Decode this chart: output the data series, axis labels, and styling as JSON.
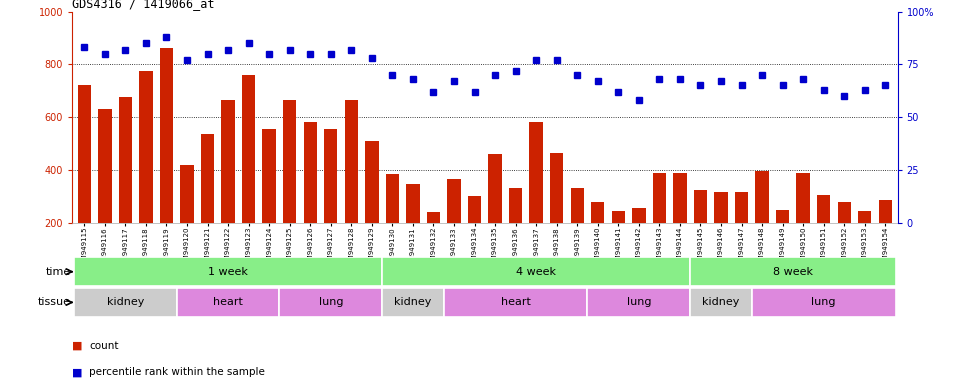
{
  "title": "GDS4316 / 1419066_at",
  "samples": [
    "GSM949115",
    "GSM949116",
    "GSM949117",
    "GSM949118",
    "GSM949119",
    "GSM949120",
    "GSM949121",
    "GSM949122",
    "GSM949123",
    "GSM949124",
    "GSM949125",
    "GSM949126",
    "GSM949127",
    "GSM949128",
    "GSM949129",
    "GSM949130",
    "GSM949131",
    "GSM949132",
    "GSM949133",
    "GSM949134",
    "GSM949135",
    "GSM949136",
    "GSM949137",
    "GSM949138",
    "GSM949139",
    "GSM949140",
    "GSM949141",
    "GSM949142",
    "GSM949143",
    "GSM949144",
    "GSM949145",
    "GSM949146",
    "GSM949147",
    "GSM949148",
    "GSM949149",
    "GSM949150",
    "GSM949151",
    "GSM949152",
    "GSM949153",
    "GSM949154"
  ],
  "counts": [
    720,
    630,
    675,
    775,
    860,
    420,
    535,
    665,
    760,
    555,
    665,
    580,
    555,
    665,
    510,
    385,
    345,
    240,
    365,
    300,
    460,
    330,
    580,
    465,
    330,
    280,
    245,
    255,
    390,
    390,
    325,
    315,
    315,
    395,
    250,
    390,
    305,
    280,
    245,
    285
  ],
  "percentile": [
    83,
    80,
    82,
    85,
    88,
    77,
    80,
    82,
    85,
    80,
    82,
    80,
    80,
    82,
    78,
    70,
    68,
    62,
    67,
    62,
    70,
    72,
    77,
    77,
    70,
    67,
    62,
    58,
    68,
    68,
    65,
    67,
    65,
    70,
    65,
    68,
    63,
    60,
    63,
    65
  ],
  "bar_color": "#cc2200",
  "dot_color": "#0000cc",
  "ylim_left": [
    200,
    1000
  ],
  "yticks_left": [
    200,
    400,
    600,
    800,
    1000
  ],
  "yticks_right": [
    0,
    25,
    50,
    75,
    100
  ],
  "grid_lines": [
    400,
    600,
    800
  ],
  "time_boundaries": [
    {
      "label": "1 week",
      "start": 0,
      "end": 15
    },
    {
      "label": "4 week",
      "start": 15,
      "end": 30
    },
    {
      "label": "8 week",
      "start": 30,
      "end": 40
    }
  ],
  "tissue_groups": [
    {
      "label": "kidney",
      "start": 0,
      "end": 5,
      "tissue": "kidney"
    },
    {
      "label": "heart",
      "start": 5,
      "end": 10,
      "tissue": "heart"
    },
    {
      "label": "lung",
      "start": 10,
      "end": 15,
      "tissue": "lung"
    },
    {
      "label": "kidney",
      "start": 15,
      "end": 18,
      "tissue": "kidney"
    },
    {
      "label": "heart",
      "start": 18,
      "end": 25,
      "tissue": "heart"
    },
    {
      "label": "lung",
      "start": 25,
      "end": 30,
      "tissue": "lung"
    },
    {
      "label": "kidney",
      "start": 30,
      "end": 33,
      "tissue": "kidney"
    },
    {
      "label": "lung",
      "start": 33,
      "end": 40,
      "tissue": "lung"
    }
  ],
  "green_color": "#88ee88",
  "kidney_color": "#cccccc",
  "heart_lung_color": "#dd88dd",
  "bg_color": "#f0f0f0"
}
